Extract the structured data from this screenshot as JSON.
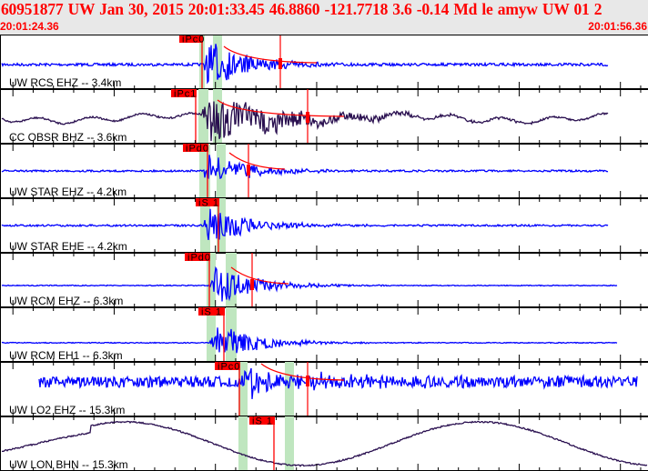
{
  "header": {
    "title": "60951877 UW Jan 30, 2015 20:01:33.45    46.8860 -121.7718  3.6 -0.14 Md le amyw UW 01   2",
    "start_time": "20:01:24.36",
    "end_time": "20:01:56.36"
  },
  "colors": {
    "short_period": "#0000ff",
    "broadband": "#2a1050",
    "pick": "#ff0000",
    "window": "#bfe6bf"
  },
  "channels": [
    {
      "label": "UW RCS EHZ -- 3.4km",
      "pick": "iPc0",
      "type": "short_period"
    },
    {
      "label": "CC OBSR BHZ -- 3.6km",
      "pick": "iPc1",
      "type": "broadband"
    },
    {
      "label": "UW STAR EHZ -- 4.2km",
      "pick": "iPd0",
      "type": "short_period"
    },
    {
      "label": "UW STAR EHE -- 4.2km",
      "pick": "iS 1",
      "type": "short_period"
    },
    {
      "label": "UW RCM EHZ -- 6.3km",
      "pick": "iPd0",
      "type": "short_period"
    },
    {
      "label": "UW RCM EH1 -- 6.3km",
      "pick": "iS 1",
      "type": "short_period"
    },
    {
      "label": "UW LO2 EHZ -- 15.3km",
      "pick": "iPc0",
      "type": "short_period"
    },
    {
      "label": "UW LON BHN -- 15.3km",
      "pick": "iS 1",
      "type": "broadband"
    }
  ]
}
